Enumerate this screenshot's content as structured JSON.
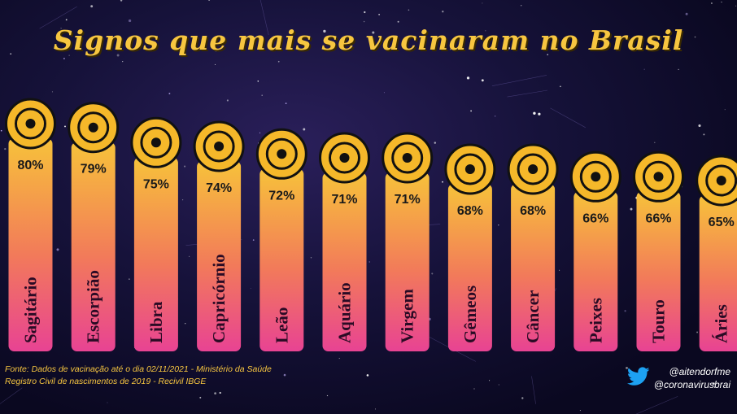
{
  "header": {
    "title": "Signos que mais se vacinaram no Brasil"
  },
  "footer": {
    "source_line1": "Fonte: Dados de vacinação até o dia 02/11/2021 - Ministério da Saúde",
    "source_line2": "Registro Civil de nascimentos de 2019 - Recivil IBGE",
    "handle1": "@aitendorfme",
    "handle2": "@coronavirusbrai"
  },
  "colors": {
    "title": "#f7c640",
    "bar_top": "#f7c23a",
    "bar_bottom": "#e84393",
    "icon_bg": "#f5b82a",
    "icon_fg": "#111111",
    "twitter": "#1da1f2"
  },
  "chart_data": {
    "type": "bar",
    "title": "Signos que mais se vacinaram no Brasil",
    "categories": [
      "Sagitário",
      "Escorpião",
      "Libra",
      "Capricórnio",
      "Leão",
      "Aquário",
      "Virgem",
      "Gêmeos",
      "Câncer",
      "Peixes",
      "Touro",
      "Áries"
    ],
    "values": [
      80,
      79,
      75,
      74,
      72,
      71,
      71,
      68,
      68,
      66,
      66,
      65
    ],
    "labels": [
      "80%",
      "79%",
      "75%",
      "74%",
      "72%",
      "71%",
      "71%",
      "68%",
      "68%",
      "66%",
      "66%",
      "65%"
    ],
    "icons": [
      "sagittarius-icon",
      "scorpio-icon",
      "libra-icon",
      "capricorn-icon",
      "leo-icon",
      "aquarius-icon",
      "virgo-icon",
      "gemini-icon",
      "cancer-icon",
      "pisces-icon",
      "taurus-icon",
      "aries-icon"
    ],
    "unit": "%"
  }
}
